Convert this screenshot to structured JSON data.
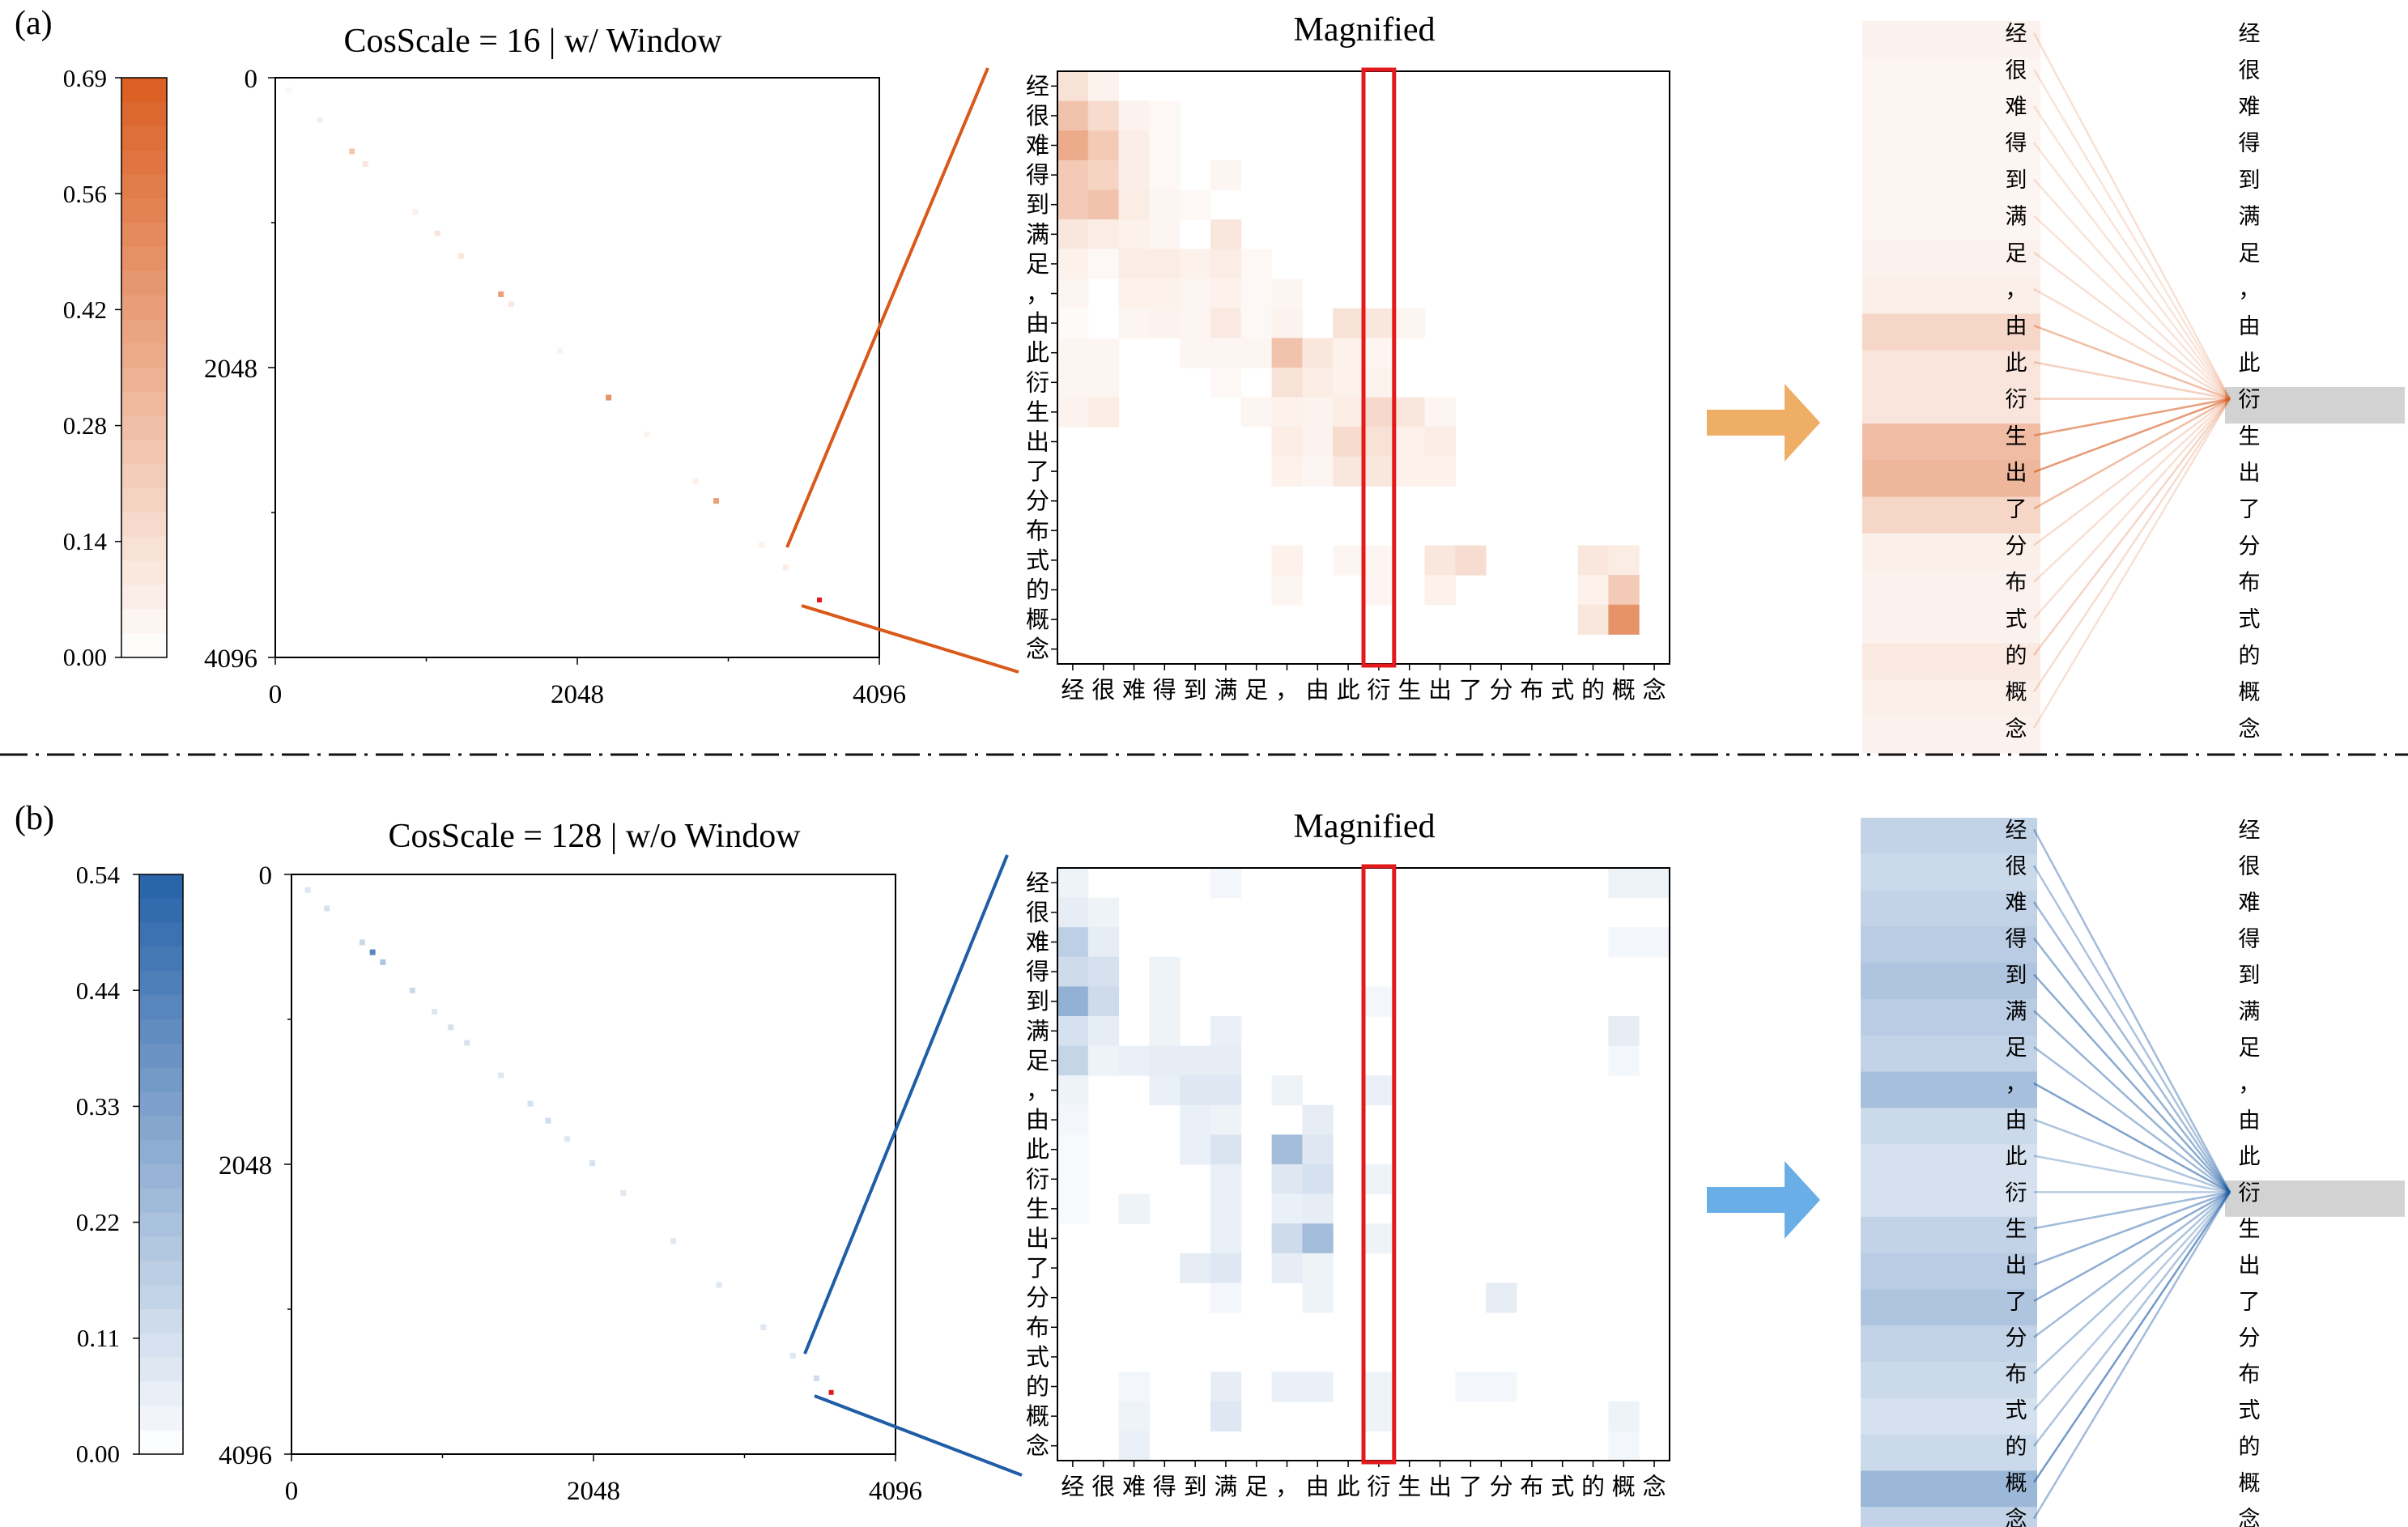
{
  "colors": {
    "orange_max": "#d9591a",
    "blue_max": "#1f5da6",
    "highlight": "#e31a1c",
    "orange_arrow": "#efae66",
    "blue_arrow": "#6aaee8",
    "selected_token_bg": "#d2d2d2"
  },
  "tokens": [
    "经",
    "很",
    "难",
    "得",
    "到",
    "满",
    "足",
    "，",
    "由",
    "此",
    "衍",
    "生",
    "出",
    "了",
    "分",
    "布",
    "式",
    "的",
    "概",
    "念"
  ],
  "selected_token_index": 10,
  "divider": {
    "style": "dash-dot"
  },
  "chart_data": [
    {
      "panel_label": "(a)",
      "title": "CosScale = 16 | w/ Window",
      "type": "heatmap",
      "colormap": "orange",
      "colorbar": {
        "min": 0.0,
        "max": 0.69,
        "ticks": [
          "0.69",
          "0.56",
          "0.42",
          "0.28",
          "0.14",
          "0.00"
        ]
      },
      "overview": {
        "x_ticks": [
          "0",
          "2048",
          "4096"
        ],
        "y_ticks": [
          "0",
          "2048",
          "4096"
        ],
        "axis_range": [
          0,
          4096
        ],
        "diagonal_cells": [
          {
            "x": 90,
            "v": 0.02
          },
          {
            "x": 300,
            "v": 0.05
          },
          {
            "x": 520,
            "v": 0.15
          },
          {
            "x": 610,
            "v": 0.06
          },
          {
            "x": 950,
            "v": 0.04
          },
          {
            "x": 1100,
            "v": 0.07
          },
          {
            "x": 1260,
            "v": 0.06
          },
          {
            "x": 1530,
            "v": 0.25
          },
          {
            "x": 1600,
            "v": 0.06
          },
          {
            "x": 1930,
            "v": 0.03
          },
          {
            "x": 2260,
            "v": 0.28
          },
          {
            "x": 2520,
            "v": 0.03
          },
          {
            "x": 2850,
            "v": 0.04
          },
          {
            "x": 2990,
            "v": 0.25
          },
          {
            "x": 3300,
            "v": 0.04
          },
          {
            "x": 3460,
            "v": 0.05
          }
        ],
        "highlight_position": 3690
      },
      "magnified": {
        "title": "Magnified",
        "highlight_column": 10,
        "cells": [
          [
            0,
            0,
            0.12
          ],
          [
            1,
            0,
            0.05
          ],
          [
            0,
            1,
            0.25
          ],
          [
            1,
            1,
            0.15
          ],
          [
            2,
            1,
            0.05
          ],
          [
            3,
            1,
            0.03
          ],
          [
            0,
            2,
            0.35
          ],
          [
            1,
            2,
            0.22
          ],
          [
            2,
            2,
            0.07
          ],
          [
            3,
            2,
            0.03
          ],
          [
            0,
            3,
            0.22
          ],
          [
            1,
            3,
            0.18
          ],
          [
            2,
            3,
            0.07
          ],
          [
            3,
            3,
            0.03
          ],
          [
            5,
            3,
            0.04
          ],
          [
            0,
            4,
            0.22
          ],
          [
            1,
            4,
            0.25
          ],
          [
            2,
            4,
            0.08
          ],
          [
            3,
            4,
            0.04
          ],
          [
            4,
            4,
            0.03
          ],
          [
            0,
            5,
            0.1
          ],
          [
            1,
            5,
            0.08
          ],
          [
            2,
            5,
            0.06
          ],
          [
            3,
            5,
            0.04
          ],
          [
            5,
            5,
            0.1
          ],
          [
            0,
            6,
            0.06
          ],
          [
            1,
            6,
            0.03
          ],
          [
            2,
            6,
            0.08
          ],
          [
            3,
            6,
            0.08
          ],
          [
            4,
            6,
            0.06
          ],
          [
            5,
            6,
            0.08
          ],
          [
            6,
            6,
            0.03
          ],
          [
            0,
            7,
            0.04
          ],
          [
            2,
            7,
            0.06
          ],
          [
            3,
            7,
            0.06
          ],
          [
            4,
            7,
            0.04
          ],
          [
            5,
            7,
            0.06
          ],
          [
            6,
            7,
            0.03
          ],
          [
            7,
            7,
            0.04
          ],
          [
            0,
            8,
            0.02
          ],
          [
            2,
            8,
            0.04
          ],
          [
            3,
            8,
            0.05
          ],
          [
            4,
            8,
            0.04
          ],
          [
            5,
            8,
            0.09
          ],
          [
            6,
            8,
            0.03
          ],
          [
            7,
            8,
            0.05
          ],
          [
            9,
            8,
            0.12
          ],
          [
            10,
            8,
            0.1
          ],
          [
            11,
            8,
            0.04
          ],
          [
            0,
            9,
            0.04
          ],
          [
            1,
            9,
            0.04
          ],
          [
            4,
            9,
            0.04
          ],
          [
            5,
            9,
            0.04
          ],
          [
            6,
            9,
            0.04
          ],
          [
            7,
            9,
            0.25
          ],
          [
            8,
            9,
            0.1
          ],
          [
            9,
            9,
            0.06
          ],
          [
            10,
            9,
            0.04
          ],
          [
            0,
            10,
            0.04
          ],
          [
            1,
            10,
            0.04
          ],
          [
            5,
            10,
            0.03
          ],
          [
            7,
            10,
            0.12
          ],
          [
            8,
            10,
            0.08
          ],
          [
            9,
            10,
            0.06
          ],
          [
            10,
            10,
            0.05
          ],
          [
            0,
            11,
            0.05
          ],
          [
            1,
            11,
            0.08
          ],
          [
            6,
            11,
            0.04
          ],
          [
            7,
            11,
            0.06
          ],
          [
            8,
            11,
            0.05
          ],
          [
            9,
            11,
            0.08
          ],
          [
            10,
            11,
            0.16
          ],
          [
            11,
            11,
            0.1
          ],
          [
            12,
            11,
            0.04
          ],
          [
            7,
            12,
            0.08
          ],
          [
            8,
            12,
            0.05
          ],
          [
            9,
            12,
            0.15
          ],
          [
            10,
            12,
            0.12
          ],
          [
            11,
            12,
            0.06
          ],
          [
            12,
            12,
            0.08
          ],
          [
            7,
            13,
            0.06
          ],
          [
            8,
            13,
            0.04
          ],
          [
            9,
            13,
            0.1
          ],
          [
            10,
            13,
            0.1
          ],
          [
            11,
            13,
            0.06
          ],
          [
            12,
            13,
            0.06
          ],
          [
            7,
            16,
            0.06
          ],
          [
            9,
            16,
            0.04
          ],
          [
            10,
            16,
            0.04
          ],
          [
            12,
            16,
            0.1
          ],
          [
            13,
            16,
            0.14
          ],
          [
            17,
            16,
            0.1
          ],
          [
            18,
            16,
            0.08
          ],
          [
            7,
            17,
            0.04
          ],
          [
            10,
            17,
            0.04
          ],
          [
            12,
            17,
            0.06
          ],
          [
            17,
            17,
            0.06
          ],
          [
            18,
            17,
            0.22
          ],
          [
            17,
            18,
            0.1
          ],
          [
            18,
            18,
            0.45
          ]
        ]
      },
      "attention_links": {
        "source_strengths": [
          0.03,
          0.02,
          0.02,
          0.02,
          0.02,
          0.02,
          0.03,
          0.04,
          0.12,
          0.07,
          0.07,
          0.2,
          0.22,
          0.12,
          0.04,
          0.03,
          0.03,
          0.06,
          0.04,
          0.03
        ]
      }
    },
    {
      "panel_label": "(b)",
      "title": "CosScale = 128 | w/o Window",
      "type": "heatmap",
      "colormap": "blue",
      "colorbar": {
        "min": 0.0,
        "max": 0.54,
        "ticks": [
          "0.54",
          "0.44",
          "0.33",
          "0.22",
          "0.11",
          "0.00"
        ]
      },
      "overview": {
        "x_ticks": [
          "0",
          "2048",
          "4096"
        ],
        "y_ticks": [
          "0",
          "2048",
          "4096"
        ],
        "axis_range": [
          0,
          4096
        ],
        "diagonal_cells": [
          {
            "x": 110,
            "v": 0.05
          },
          {
            "x": 240,
            "v": 0.06
          },
          {
            "x": 480,
            "v": 0.08
          },
          {
            "x": 550,
            "v": 0.25
          },
          {
            "x": 620,
            "v": 0.12
          },
          {
            "x": 820,
            "v": 0.08
          },
          {
            "x": 970,
            "v": 0.05
          },
          {
            "x": 1080,
            "v": 0.06
          },
          {
            "x": 1190,
            "v": 0.06
          },
          {
            "x": 1420,
            "v": 0.05
          },
          {
            "x": 1620,
            "v": 0.06
          },
          {
            "x": 1740,
            "v": 0.07
          },
          {
            "x": 1870,
            "v": 0.05
          },
          {
            "x": 2040,
            "v": 0.06
          },
          {
            "x": 2250,
            "v": 0.05
          },
          {
            "x": 2590,
            "v": 0.05
          },
          {
            "x": 2900,
            "v": 0.05
          },
          {
            "x": 3200,
            "v": 0.05
          },
          {
            "x": 3400,
            "v": 0.05
          },
          {
            "x": 3560,
            "v": 0.07
          }
        ],
        "highlight_position": 3660
      },
      "magnified": {
        "title": "Magnified",
        "highlight_column": 10,
        "cells": [
          [
            0,
            0,
            0.04
          ],
          [
            5,
            0,
            0.03
          ],
          [
            18,
            0,
            0.04
          ],
          [
            19,
            0,
            0.04
          ],
          [
            0,
            1,
            0.06
          ],
          [
            1,
            1,
            0.04
          ],
          [
            0,
            2,
            0.16
          ],
          [
            1,
            2,
            0.06
          ],
          [
            18,
            2,
            0.03
          ],
          [
            19,
            2,
            0.03
          ],
          [
            0,
            3,
            0.12
          ],
          [
            1,
            3,
            0.1
          ],
          [
            3,
            3,
            0.04
          ],
          [
            0,
            4,
            0.26
          ],
          [
            1,
            4,
            0.12
          ],
          [
            3,
            4,
            0.04
          ],
          [
            10,
            4,
            0.03
          ],
          [
            0,
            5,
            0.1
          ],
          [
            1,
            5,
            0.06
          ],
          [
            3,
            5,
            0.04
          ],
          [
            5,
            5,
            0.05
          ],
          [
            18,
            5,
            0.06
          ],
          [
            0,
            6,
            0.14
          ],
          [
            1,
            6,
            0.04
          ],
          [
            2,
            6,
            0.05
          ],
          [
            3,
            6,
            0.06
          ],
          [
            4,
            6,
            0.06
          ],
          [
            5,
            6,
            0.06
          ],
          [
            18,
            6,
            0.03
          ],
          [
            0,
            7,
            0.04
          ],
          [
            3,
            7,
            0.05
          ],
          [
            4,
            7,
            0.08
          ],
          [
            5,
            7,
            0.08
          ],
          [
            7,
            7,
            0.04
          ],
          [
            10,
            7,
            0.05
          ],
          [
            0,
            8,
            0.03
          ],
          [
            4,
            8,
            0.05
          ],
          [
            5,
            8,
            0.04
          ],
          [
            8,
            8,
            0.06
          ],
          [
            0,
            9,
            0.02
          ],
          [
            4,
            9,
            0.05
          ],
          [
            5,
            9,
            0.09
          ],
          [
            7,
            9,
            0.22
          ],
          [
            8,
            9,
            0.08
          ],
          [
            0,
            10,
            0.02
          ],
          [
            5,
            10,
            0.05
          ],
          [
            7,
            10,
            0.08
          ],
          [
            8,
            10,
            0.1
          ],
          [
            10,
            10,
            0.04
          ],
          [
            0,
            11,
            0.02
          ],
          [
            2,
            11,
            0.04
          ],
          [
            5,
            11,
            0.05
          ],
          [
            7,
            11,
            0.05
          ],
          [
            8,
            11,
            0.06
          ],
          [
            5,
            12,
            0.05
          ],
          [
            7,
            12,
            0.12
          ],
          [
            8,
            12,
            0.22
          ],
          [
            10,
            12,
            0.04
          ],
          [
            4,
            13,
            0.06
          ],
          [
            5,
            13,
            0.08
          ],
          [
            7,
            13,
            0.06
          ],
          [
            8,
            13,
            0.04
          ],
          [
            5,
            14,
            0.03
          ],
          [
            8,
            14,
            0.04
          ],
          [
            14,
            14,
            0.06
          ],
          [
            2,
            17,
            0.03
          ],
          [
            5,
            17,
            0.06
          ],
          [
            7,
            17,
            0.05
          ],
          [
            8,
            17,
            0.05
          ],
          [
            10,
            17,
            0.04
          ],
          [
            13,
            17,
            0.03
          ],
          [
            14,
            17,
            0.03
          ],
          [
            2,
            18,
            0.04
          ],
          [
            5,
            18,
            0.08
          ],
          [
            10,
            18,
            0.04
          ],
          [
            18,
            18,
            0.04
          ],
          [
            2,
            19,
            0.05
          ],
          [
            18,
            19,
            0.03
          ]
        ]
      },
      "attention_links": {
        "source_strengths": [
          0.06,
          0.05,
          0.06,
          0.07,
          0.08,
          0.07,
          0.06,
          0.09,
          0.05,
          0.04,
          0.04,
          0.06,
          0.07,
          0.08,
          0.06,
          0.05,
          0.04,
          0.05,
          0.1,
          0.06
        ]
      }
    }
  ]
}
